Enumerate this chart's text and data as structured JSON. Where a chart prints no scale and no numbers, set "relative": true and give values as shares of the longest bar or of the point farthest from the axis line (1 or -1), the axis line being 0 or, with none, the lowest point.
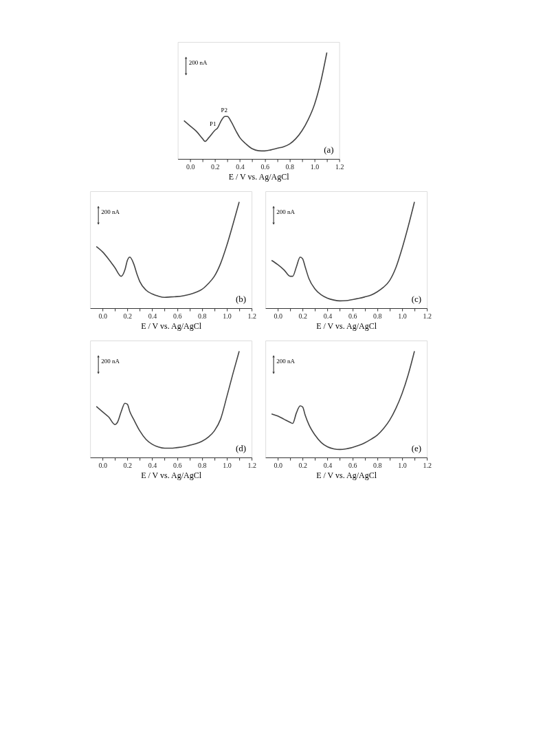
{
  "chart_data": [
    {
      "type": "line",
      "relative": true,
      "xlabel": "E / V vs. Ag/AgCl",
      "xlim": [
        -0.1,
        1.2
      ],
      "xticks": [
        {
          "value": 0,
          "label": "0.0"
        },
        {
          "value": 0.1,
          "label": null
        },
        {
          "value": 0.2,
          "label": "0.2"
        },
        {
          "value": 0.3,
          "label": null
        },
        {
          "value": 0.4,
          "label": "0.4"
        },
        {
          "value": 0.5,
          "label": null
        },
        {
          "value": 0.6,
          "label": "0.6"
        },
        {
          "value": 0.7,
          "label": null
        },
        {
          "value": 0.8,
          "label": "0.8"
        },
        {
          "value": 0.9,
          "label": null
        },
        {
          "value": 1.0,
          "label": "1.0"
        },
        {
          "value": 1.1,
          "label": null
        },
        {
          "value": 1.2,
          "label": "1.2"
        }
      ],
      "x": [
        -0.05,
        0.0,
        0.05,
        0.1,
        0.12,
        0.15,
        0.2,
        0.22,
        0.25,
        0.28,
        0.3,
        0.33,
        0.37,
        0.4,
        0.45,
        0.5,
        0.55,
        0.6,
        0.65,
        0.7,
        0.75,
        0.8,
        0.85,
        0.9,
        0.95,
        1.0,
        1.05,
        1.1
      ],
      "series": [
        {
          "color": "#444444",
          "values": [
            0.36,
            0.31,
            0.26,
            0.19,
            0.165,
            0.2,
            0.27,
            0.29,
            0.36,
            0.4,
            0.4,
            0.35,
            0.26,
            0.2,
            0.14,
            0.095,
            0.077,
            0.075,
            0.085,
            0.1,
            0.114,
            0.14,
            0.19,
            0.265,
            0.37,
            0.51,
            0.72,
            1.0
          ]
        }
      ],
      "annotations": [
        "200 nA",
        "(a)",
        {
          "text": "P1",
          "x": 0.2,
          "y": 0.27
        },
        {
          "text": "P2",
          "x": 0.29,
          "y": 0.4
        }
      ]
    },
    {
      "type": "line",
      "relative": true,
      "xlabel": "E / V vs. Ag/AgCl",
      "xlim": [
        -0.1,
        1.2
      ],
      "xticks": [
        {
          "value": 0,
          "label": "0.0"
        },
        {
          "value": 0.1,
          "label": null
        },
        {
          "value": 0.2,
          "label": "0.2"
        },
        {
          "value": 0.3,
          "label": null
        },
        {
          "value": 0.4,
          "label": "0.4"
        },
        {
          "value": 0.5,
          "label": null
        },
        {
          "value": 0.6,
          "label": "0.6"
        },
        {
          "value": 0.7,
          "label": null
        },
        {
          "value": 0.8,
          "label": "0.8"
        },
        {
          "value": 0.9,
          "label": null
        },
        {
          "value": 1.0,
          "label": "1.0"
        },
        {
          "value": 1.1,
          "label": null
        },
        {
          "value": 1.2,
          "label": "1.2"
        }
      ],
      "x": [
        -0.05,
        0.0,
        0.05,
        0.1,
        0.15,
        0.18,
        0.2,
        0.22,
        0.25,
        0.28,
        0.3,
        0.35,
        0.4,
        0.45,
        0.5,
        0.55,
        0.6,
        0.65,
        0.7,
        0.75,
        0.8,
        0.85,
        0.9,
        0.95,
        1.0,
        1.05,
        1.1
      ],
      "series": [
        {
          "color": "#444444",
          "values": [
            0.58,
            0.53,
            0.46,
            0.38,
            0.3,
            0.36,
            0.45,
            0.48,
            0.42,
            0.31,
            0.25,
            0.17,
            0.134,
            0.113,
            0.102,
            0.106,
            0.109,
            0.117,
            0.13,
            0.149,
            0.177,
            0.23,
            0.3,
            0.42,
            0.59,
            0.79,
            1.0
          ]
        }
      ],
      "annotations": [
        "200 nA",
        "(b)"
      ]
    },
    {
      "type": "line",
      "relative": true,
      "xlabel": "E / V vs. Ag/AgCl",
      "xlim": [
        -0.1,
        1.2
      ],
      "xticks": [
        {
          "value": 0,
          "label": "0.0"
        },
        {
          "value": 0.1,
          "label": null
        },
        {
          "value": 0.2,
          "label": "0.2"
        },
        {
          "value": 0.3,
          "label": null
        },
        {
          "value": 0.4,
          "label": "0.4"
        },
        {
          "value": 0.5,
          "label": null
        },
        {
          "value": 0.6,
          "label": "0.6"
        },
        {
          "value": 0.7,
          "label": null
        },
        {
          "value": 0.8,
          "label": "0.8"
        },
        {
          "value": 0.9,
          "label": null
        },
        {
          "value": 1.0,
          "label": "1.0"
        },
        {
          "value": 1.1,
          "label": null
        },
        {
          "value": 1.2,
          "label": "1.2"
        }
      ],
      "x": [
        -0.05,
        0.0,
        0.05,
        0.1,
        0.12,
        0.15,
        0.18,
        0.2,
        0.22,
        0.25,
        0.3,
        0.35,
        0.4,
        0.45,
        0.5,
        0.55,
        0.6,
        0.65,
        0.7,
        0.75,
        0.8,
        0.85,
        0.9,
        0.95,
        1.0,
        1.05,
        1.1
      ],
      "series": [
        {
          "color": "#444444",
          "values": [
            0.45,
            0.41,
            0.36,
            0.3,
            0.3,
            0.39,
            0.48,
            0.465,
            0.39,
            0.28,
            0.18,
            0.125,
            0.094,
            0.077,
            0.069,
            0.071,
            0.081,
            0.092,
            0.106,
            0.123,
            0.154,
            0.196,
            0.26,
            0.38,
            0.56,
            0.77,
            1.0
          ]
        }
      ],
      "annotations": [
        "200 nA",
        "(c)"
      ]
    },
    {
      "type": "line",
      "relative": true,
      "xlabel": "E / V vs. Ag/AgCl",
      "xlim": [
        -0.1,
        1.2
      ],
      "xticks": [
        {
          "value": 0,
          "label": "0.0"
        },
        {
          "value": 0.1,
          "label": null
        },
        {
          "value": 0.2,
          "label": "0.2"
        },
        {
          "value": 0.3,
          "label": null
        },
        {
          "value": 0.4,
          "label": "0.4"
        },
        {
          "value": 0.5,
          "label": null
        },
        {
          "value": 0.6,
          "label": "0.6"
        },
        {
          "value": 0.7,
          "label": null
        },
        {
          "value": 0.8,
          "label": "0.8"
        },
        {
          "value": 0.9,
          "label": null
        },
        {
          "value": 1.0,
          "label": "1.0"
        },
        {
          "value": 1.1,
          "label": null
        },
        {
          "value": 1.2,
          "label": "1.2"
        }
      ],
      "x": [
        -0.05,
        0.0,
        0.05,
        0.1,
        0.12,
        0.15,
        0.18,
        0.2,
        0.22,
        0.25,
        0.3,
        0.35,
        0.4,
        0.45,
        0.5,
        0.55,
        0.6,
        0.65,
        0.7,
        0.75,
        0.8,
        0.85,
        0.9,
        0.95,
        1.0,
        1.05,
        1.1
      ],
      "series": [
        {
          "color": "#444444",
          "values": [
            0.48,
            0.43,
            0.38,
            0.31,
            0.33,
            0.43,
            0.51,
            0.5,
            0.43,
            0.36,
            0.25,
            0.17,
            0.124,
            0.099,
            0.087,
            0.087,
            0.093,
            0.1,
            0.114,
            0.129,
            0.152,
            0.19,
            0.25,
            0.36,
            0.57,
            0.79,
            1.0
          ]
        }
      ],
      "annotations": [
        "200 nA",
        "(d)"
      ]
    },
    {
      "type": "line",
      "relative": true,
      "xlabel": "E / V vs. Ag/AgCl",
      "xlim": [
        -0.1,
        1.2
      ],
      "xticks": [
        {
          "value": 0,
          "label": "0.0"
        },
        {
          "value": 0.1,
          "label": null
        },
        {
          "value": 0.2,
          "label": "0.2"
        },
        {
          "value": 0.3,
          "label": null
        },
        {
          "value": 0.4,
          "label": "0.4"
        },
        {
          "value": 0.5,
          "label": null
        },
        {
          "value": 0.6,
          "label": "0.6"
        },
        {
          "value": 0.7,
          "label": null
        },
        {
          "value": 0.8,
          "label": "0.8"
        },
        {
          "value": 0.9,
          "label": null
        },
        {
          "value": 1.0,
          "label": "1.0"
        },
        {
          "value": 1.1,
          "label": null
        },
        {
          "value": 1.2,
          "label": "1.2"
        }
      ],
      "x": [
        -0.05,
        0.0,
        0.05,
        0.1,
        0.12,
        0.15,
        0.18,
        0.2,
        0.22,
        0.25,
        0.3,
        0.35,
        0.4,
        0.45,
        0.5,
        0.55,
        0.6,
        0.65,
        0.7,
        0.75,
        0.8,
        0.85,
        0.9,
        0.95,
        1.0,
        1.05,
        1.1
      ],
      "series": [
        {
          "color": "#444444",
          "values": [
            0.41,
            0.39,
            0.36,
            0.33,
            0.32,
            0.42,
            0.485,
            0.475,
            0.4,
            0.31,
            0.21,
            0.14,
            0.1,
            0.081,
            0.075,
            0.081,
            0.094,
            0.113,
            0.138,
            0.171,
            0.21,
            0.27,
            0.35,
            0.46,
            0.6,
            0.78,
            1.0
          ]
        }
      ],
      "annotations": [
        "200 nA",
        "(e)"
      ]
    }
  ]
}
